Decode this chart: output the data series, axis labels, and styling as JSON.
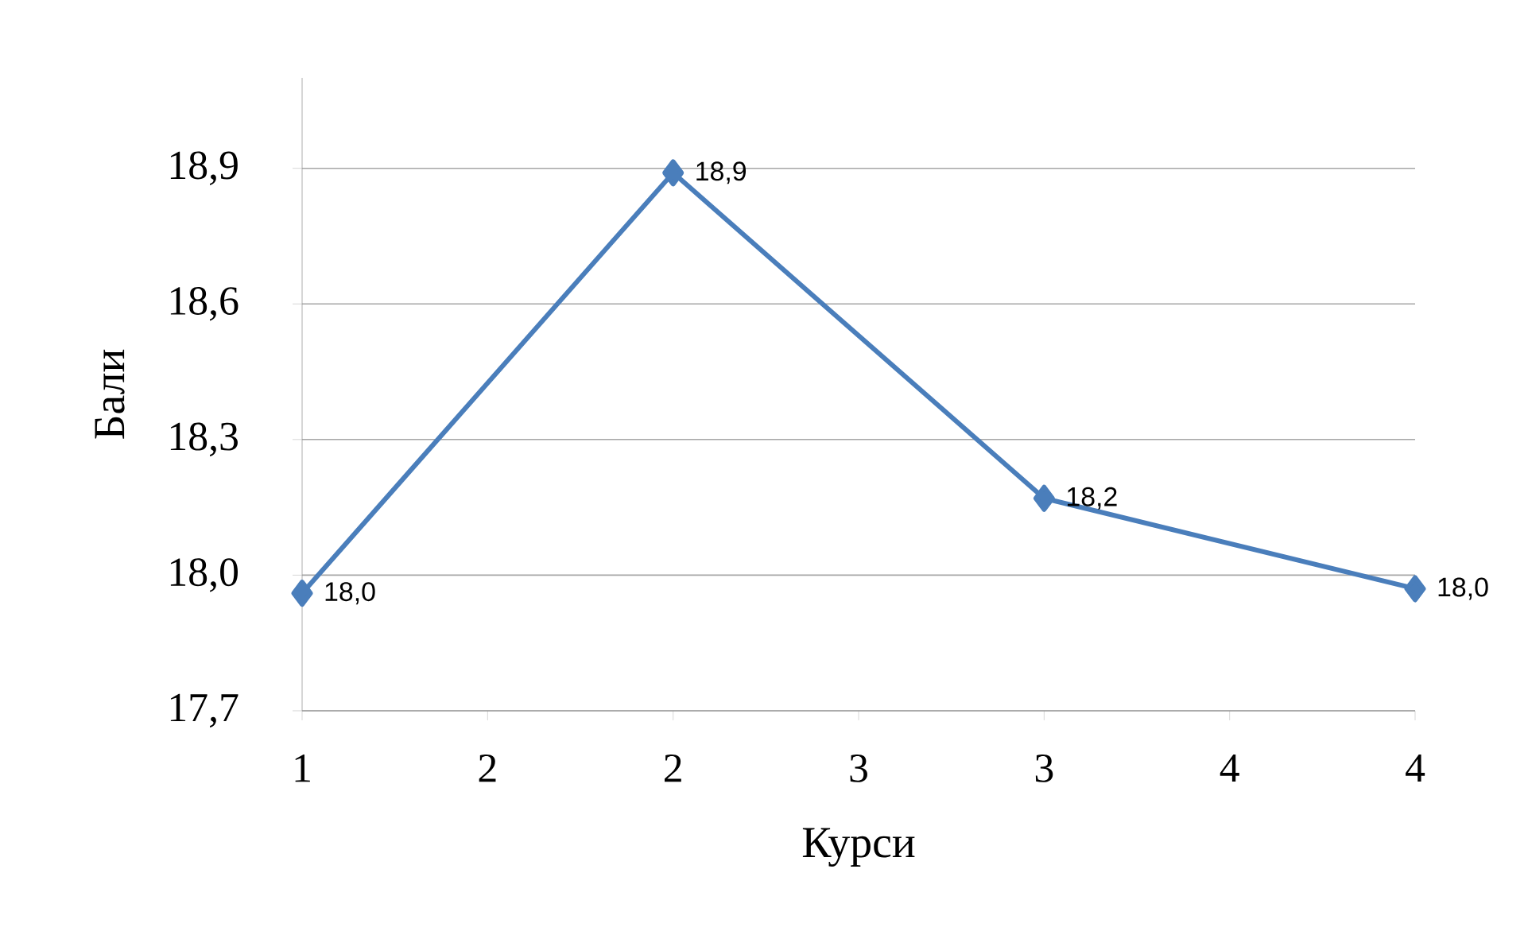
{
  "chart_data": {
    "type": "line",
    "xlabel": "Курси",
    "ylabel": "Бали",
    "x": [
      1,
      2,
      3,
      4
    ],
    "series": [
      {
        "color": "#4a7ebb",
        "values": [
          17.96,
          18.89,
          18.17,
          17.97
        ],
        "value_labels": [
          "18,0",
          "18,9",
          "18,2",
          "18,0"
        ]
      }
    ],
    "xlim": [
      1,
      4
    ],
    "xticks": [
      1,
      {
        "value": 1.5,
        "label": "2"
      },
      {
        "value": 2,
        "label": "2"
      },
      {
        "value": 2.5,
        "label": "3"
      },
      {
        "value": 3,
        "label": "3"
      },
      {
        "value": 3.5,
        "label": "4"
      },
      4
    ],
    "ylim": [
      17.7,
      19.1
    ],
    "yticks": [
      {
        "value": 17.7,
        "label": "17,7"
      },
      {
        "value": 18.0,
        "label": "18,0"
      },
      {
        "value": 18.3,
        "label": "18,3"
      },
      {
        "value": 18.6,
        "label": "18,6"
      },
      {
        "value": 18.9,
        "label": "18,9"
      }
    ],
    "grid": "y",
    "marker": "diamond",
    "line_style": "solid"
  }
}
